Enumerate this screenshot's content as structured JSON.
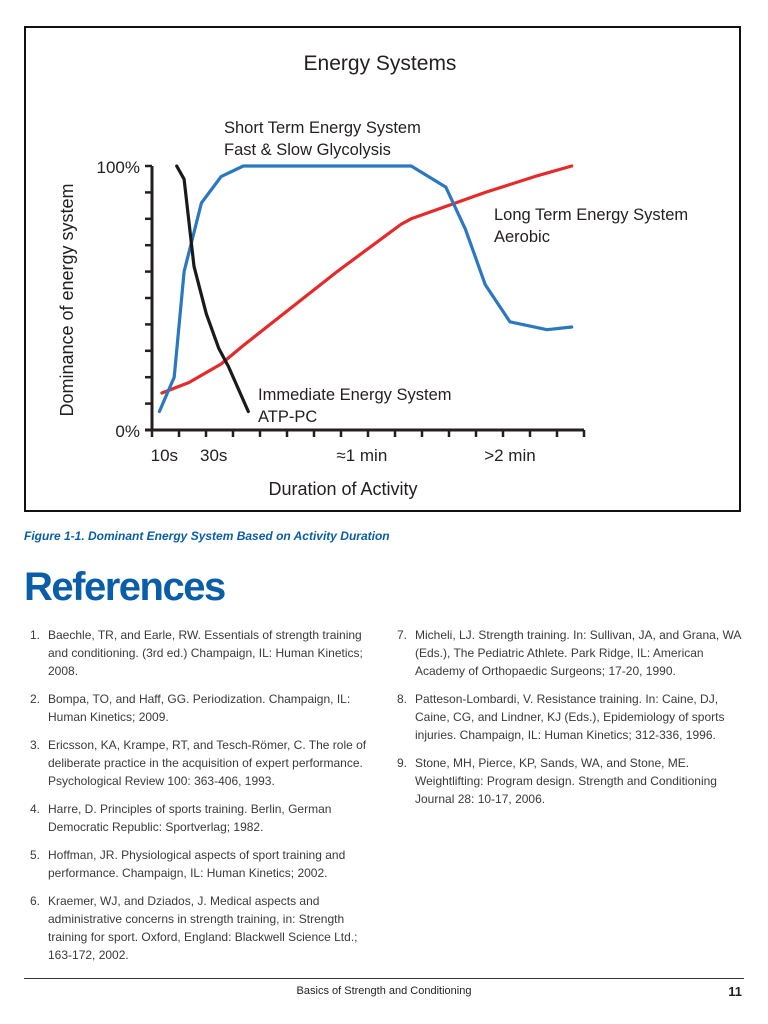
{
  "figure": {
    "caption": "Figure 1-1. Dominant Energy System Based on Activity Duration"
  },
  "chart_data": {
    "type": "line",
    "title": "Energy Systems",
    "xlabel": "Duration of Activity",
    "ylabel": "Dominance of energy system",
    "x_unit": "seconds",
    "xlim": [
      5,
      180
    ],
    "ylim": [
      0,
      100
    ],
    "ytick_labels": [
      {
        "value": 100,
        "label": "100%"
      },
      {
        "value": 0,
        "label": "0%"
      }
    ],
    "xtick_labels": [
      {
        "value": 10,
        "label": "10s"
      },
      {
        "value": 30,
        "label": "30s"
      },
      {
        "value": 90,
        "label": "≈1 min"
      },
      {
        "value": 150,
        "label": ">2 min"
      }
    ],
    "series": [
      {
        "name": "Immediate Energy System",
        "annotation": [
          "Immediate Energy System",
          "ATP-PC"
        ],
        "color": "#1a1a1a",
        "points": [
          [
            15,
            100
          ],
          [
            18,
            95
          ],
          [
            22,
            62
          ],
          [
            27,
            44
          ],
          [
            32,
            31
          ],
          [
            36,
            24
          ],
          [
            44,
            7
          ]
        ]
      },
      {
        "name": "Short Term Energy System",
        "annotation": [
          "Short Term Energy System",
          "Fast & Slow Glycolysis"
        ],
        "color": "#2a78c2",
        "points": [
          [
            8,
            7
          ],
          [
            14,
            20
          ],
          [
            18,
            60
          ],
          [
            25,
            86
          ],
          [
            33,
            96
          ],
          [
            42,
            100
          ],
          [
            80,
            100
          ],
          [
            95,
            100
          ],
          [
            110,
            100
          ],
          [
            124,
            92
          ],
          [
            132,
            76
          ],
          [
            140,
            55
          ],
          [
            150,
            41
          ],
          [
            165,
            38
          ],
          [
            175,
            39
          ]
        ]
      },
      {
        "name": "Long Term Energy System",
        "annotation": [
          "Long Term Energy System",
          "Aerobic"
        ],
        "color": "#e52a2a",
        "points": [
          [
            9,
            14
          ],
          [
            20,
            18
          ],
          [
            33,
            25
          ],
          [
            42,
            32
          ],
          [
            80,
            60
          ],
          [
            106,
            78
          ],
          [
            110,
            80
          ],
          [
            140,
            90
          ],
          [
            160,
            96
          ],
          [
            175,
            100
          ]
        ]
      }
    ]
  },
  "references": {
    "heading": "References",
    "left": [
      {
        "num": "1.",
        "text": "Baechle, TR, and Earle, RW. Essentials of strength training and conditioning. (3rd ed.) Champaign, IL: Human Kinetics; 2008."
      },
      {
        "num": "2.",
        "text": "Bompa, TO, and Haff, GG. Periodization. Champaign, IL: Human Kinetics; 2009."
      },
      {
        "num": "3.",
        "text": "Ericsson, KA, Krampe, RT, and Tesch-Römer, C. The role of deliberate practice in the acquisition of expert performance. Psychological Review 100: 363-406, 1993."
      },
      {
        "num": "4.",
        "text": "Harre, D. Principles of sports training. Berlin, German Democratic Republic: Sportverlag; 1982."
      },
      {
        "num": "5.",
        "text": "Hoffman, JR. Physiological aspects of sport training and performance. Champaign, IL: Human Kinetics; 2002."
      },
      {
        "num": "6.",
        "text": "Kraemer, WJ, and Dziados, J. Medical aspects and administrative concerns in strength training, in: Strength training for sport. Oxford, England: Blackwell Science Ltd.; 163-172, 2002."
      }
    ],
    "right": [
      {
        "num": "7.",
        "text": "Micheli, LJ. Strength training. In: Sullivan, JA, and Grana, WA (Eds.), The Pediatric Athlete. Park Ridge, IL: American Academy of Orthopaedic Surgeons; 17-20, 1990."
      },
      {
        "num": "8.",
        "text": "Patteson-Lombardi, V. Resistance training. In: Caine, DJ, Caine, CG, and Lindner, KJ (Eds.), Epidemiology of sports injuries. Champaign, IL: Human Kinetics; 312-336, 1996."
      },
      {
        "num": "9.",
        "text": "Stone, MH, Pierce, KP, Sands, WA, and Stone, ME. Weightlifting: Program design. Strength and Conditioning Journal 28: 10-17, 2006."
      }
    ]
  },
  "footer": {
    "title": "Basics of Strength and Conditioning",
    "page_number": "11"
  }
}
